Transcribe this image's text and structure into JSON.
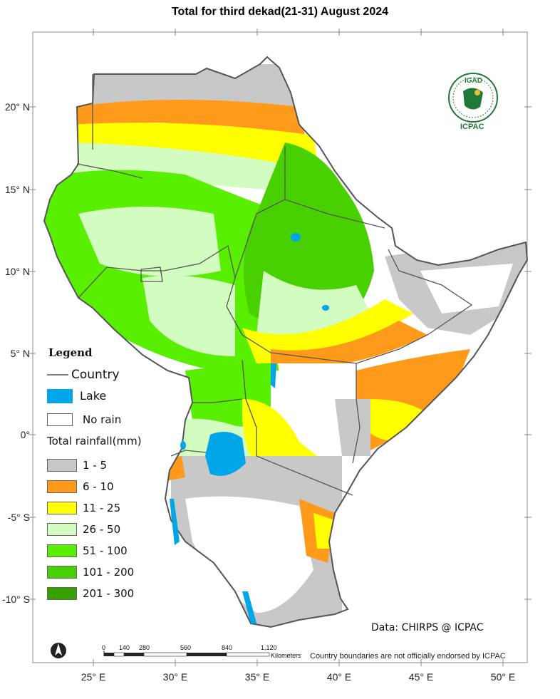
{
  "title": "Total  for third dekad(21-31) August 2024",
  "latitude_labels": [
    "20° N",
    "15° N",
    "10° N",
    "5° N",
    "0°",
    "-5° S",
    "-10° S"
  ],
  "longitude_labels": [
    "25° E",
    "30° E",
    "35° E",
    "40° E",
    "45° E",
    "50° E"
  ],
  "legend": {
    "title": "Legend",
    "country_label": "Country",
    "lake_label": "Lake",
    "no_rain_label": "No rain",
    "rainfall_title": "Total rainfall(mm)",
    "classes": [
      {
        "label": "1 - 5",
        "color": "#c8c8c8"
      },
      {
        "label": "6 - 10",
        "color": "#ff9a1a"
      },
      {
        "label": "11 - 25",
        "color": "#ffff00"
      },
      {
        "label": "26 - 50",
        "color": "#d3fcc0"
      },
      {
        "label": "51 - 100",
        "color": "#58f000"
      },
      {
        "label": "101 - 200",
        "color": "#48d000"
      },
      {
        "label": "201 - 300",
        "color": "#37a000"
      }
    ],
    "lake_color": "#00a6e8"
  },
  "logo": {
    "top_text": "IGAD",
    "bottom_text": "ICPAC"
  },
  "credit": "Data: CHIRPS @ ICPAC",
  "scale_bar": {
    "ticks": [
      "0",
      "140",
      "280",
      "560",
      "840",
      "1,120"
    ],
    "unit": "Kilometers"
  },
  "disclaimer": "Country boundaries are not officially endorsed by ICPAC",
  "north_arrow": "north-arrow-icon"
}
